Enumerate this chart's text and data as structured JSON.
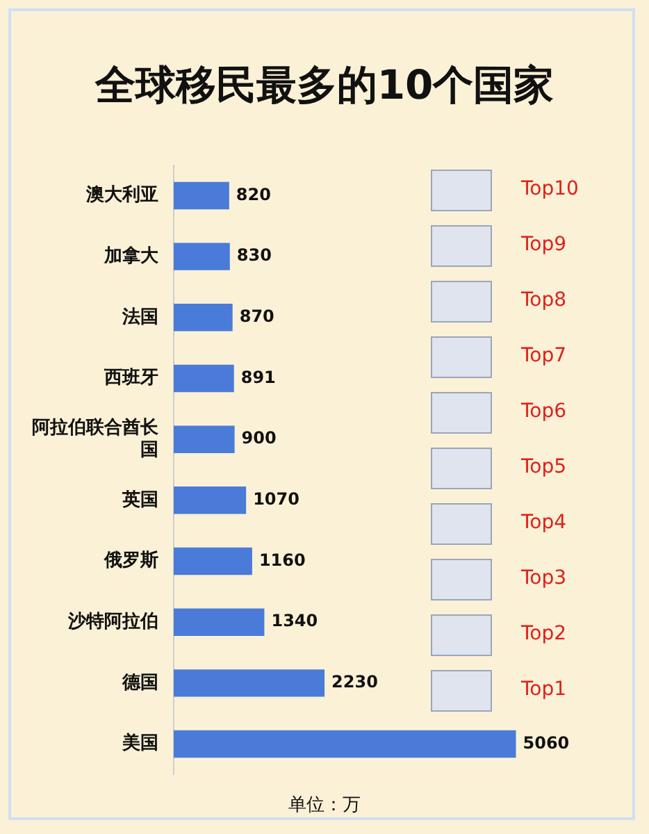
{
  "chart_data": {
    "type": "bar",
    "orientation": "horizontal",
    "title": "全球移民最多的10个国家",
    "categories": [
      "澳大利亚",
      "加拿大",
      "法国",
      "西班牙",
      "阿拉伯联合酋长国",
      "英国",
      "俄罗斯",
      "沙特阿拉伯",
      "德国",
      "美国"
    ],
    "values": [
      820,
      830,
      870,
      891,
      900,
      1070,
      1160,
      1340,
      2230,
      5060
    ],
    "color": "#4a7bd8",
    "data_labels": true,
    "legend": false,
    "tick_labels": "y",
    "annotations": [
      "Top10",
      "Top9",
      "Top8",
      "Top7",
      "Top6",
      "Top5",
      "Top4",
      "Top3",
      "Top2",
      "Top1",
      "单位：万"
    ]
  }
}
